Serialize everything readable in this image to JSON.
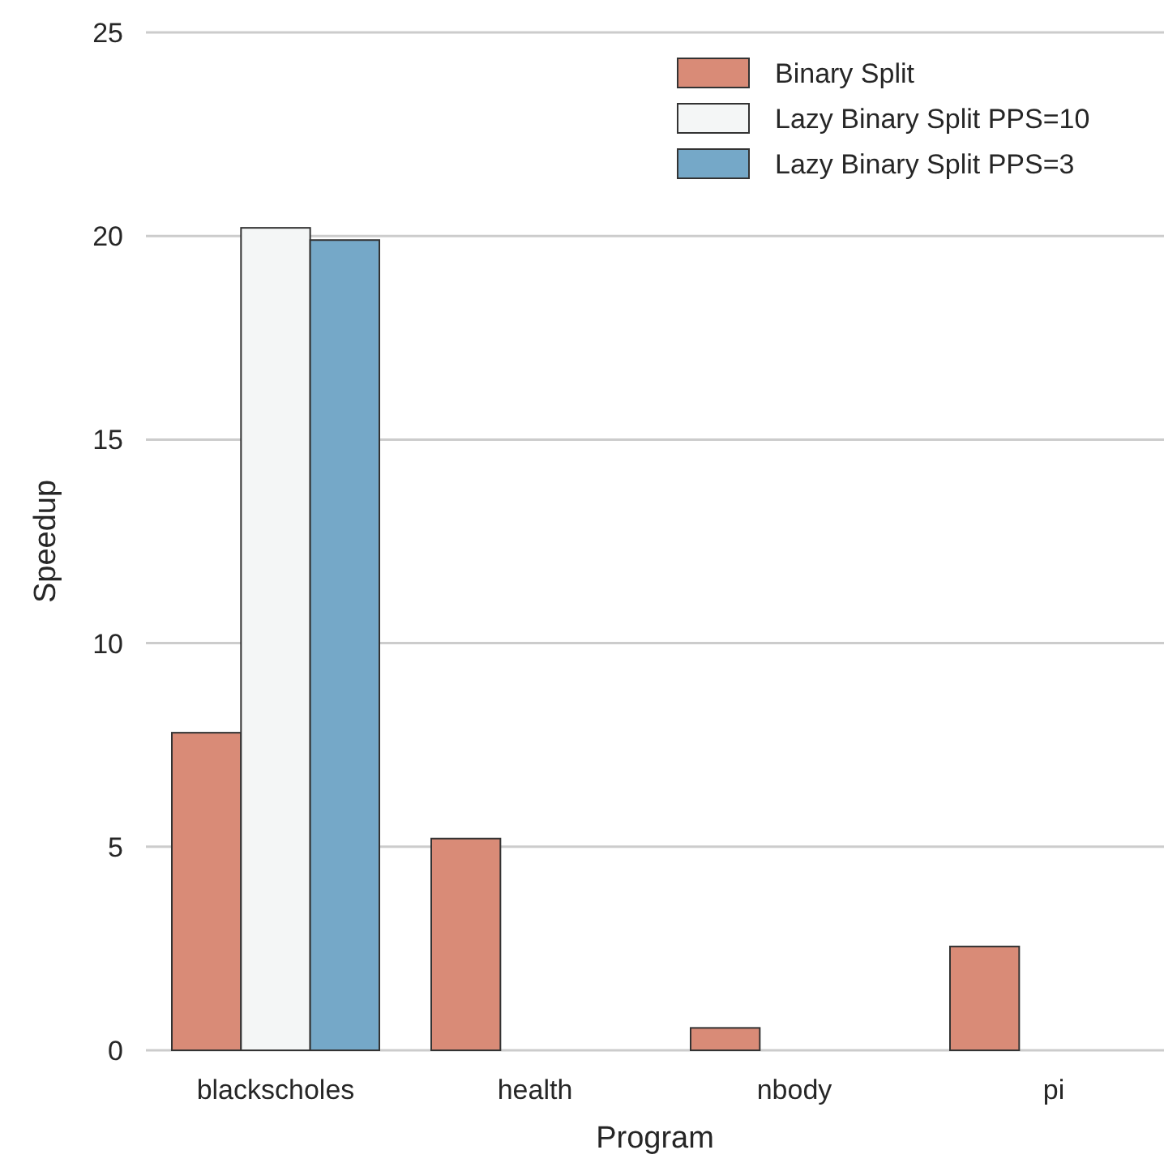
{
  "chart_data": {
    "type": "bar",
    "xlabel": "Program",
    "ylabel": "Speedup",
    "categories": [
      "blackscholes",
      "health",
      "nbody",
      "pi"
    ],
    "series": [
      {
        "name": "Binary Split",
        "color": "#d98b77",
        "values": [
          7.8,
          5.2,
          0.55,
          2.55
        ]
      },
      {
        "name": "Lazy Binary Split PPS=10",
        "color": "#f4f6f6",
        "values": [
          20.2,
          null,
          null,
          null
        ]
      },
      {
        "name": "Lazy Binary Split PPS=3",
        "color": "#75a8c8",
        "values": [
          19.9,
          null,
          null,
          null
        ]
      }
    ],
    "ylim": [
      0,
      25
    ],
    "yticks": [
      0,
      5,
      10,
      15,
      20,
      25
    ],
    "grid": "y",
    "legend": "top right"
  }
}
